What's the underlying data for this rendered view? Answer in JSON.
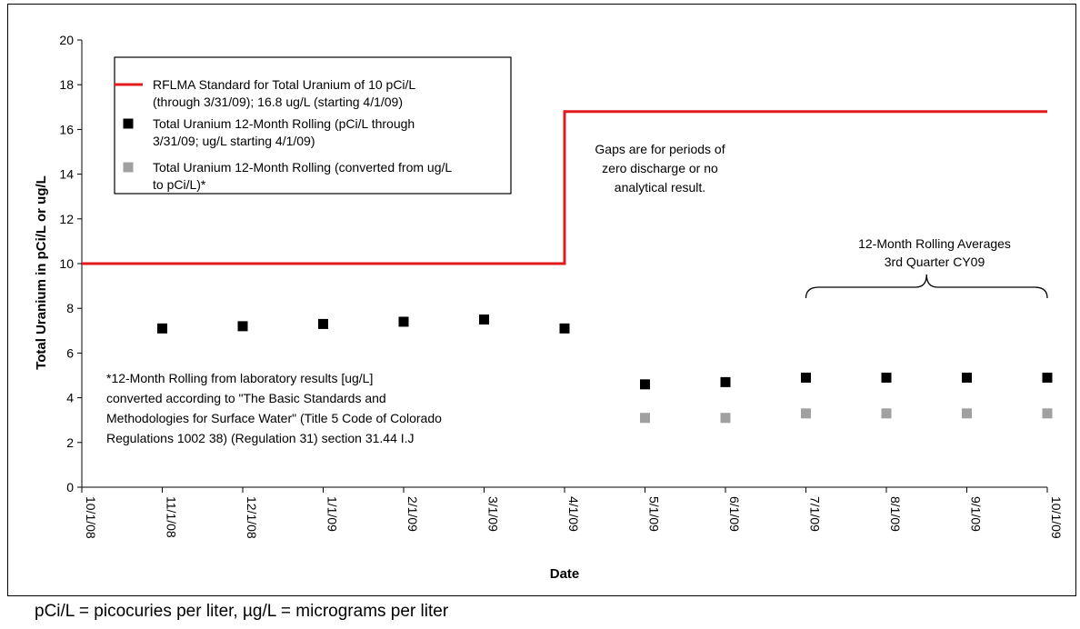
{
  "chart_data": {
    "type": "scatter",
    "title": "",
    "xlabel": "Date",
    "ylabel": "Total Uranium in pCi/L or ug/L",
    "ylim": [
      0,
      20
    ],
    "yticks": [
      0,
      2,
      4,
      6,
      8,
      10,
      12,
      14,
      16,
      18,
      20
    ],
    "x_categories": [
      "10/1/08",
      "11/1/08",
      "12/1/08",
      "1/1/09",
      "2/1/09",
      "3/1/09",
      "4/1/09",
      "5/1/09",
      "6/1/09",
      "7/1/09",
      "8/1/09",
      "9/1/09",
      "10/1/09"
    ],
    "grid": false,
    "legend_position": "top-left",
    "series": [
      {
        "name": "RFLMA Standard for Total Uranium of 10 pCi/L (through 3/31/09); 16.8 ug/L (starting 4/1/09)",
        "legend_lines": [
          "RFLMA Standard for Total Uranium of 10 pCi/L",
          "(through 3/31/09); 16.8 ug/L (starting 4/1/09)"
        ],
        "kind": "step-line",
        "color": "#e31a1c",
        "x": [
          "10/1/08",
          "4/1/09",
          "4/1/09",
          "10/1/09"
        ],
        "y": [
          10,
          10,
          16.8,
          16.8
        ]
      },
      {
        "name": "Total Uranium 12-Month Rolling (pCi/L through 3/31/09; ug/L starting 4/1/09)",
        "legend_lines": [
          "Total Uranium 12-Month Rolling (pCi/L through",
          "3/31/09; ug/L starting 4/1/09)"
        ],
        "kind": "square-marker",
        "color": "#000000",
        "x": [
          "11/1/08",
          "12/1/08",
          "1/1/09",
          "2/1/09",
          "3/1/09",
          "4/1/09",
          "5/1/09",
          "6/1/09",
          "7/1/09",
          "8/1/09",
          "9/1/09",
          "10/1/09"
        ],
        "y": [
          7.1,
          7.2,
          7.3,
          7.4,
          7.5,
          7.1,
          4.6,
          4.7,
          4.9,
          4.9,
          4.9,
          4.9
        ]
      },
      {
        "name": "Total Uranium 12-Month Rolling (converted from ug/L to pCi/L)*",
        "legend_lines": [
          "Total Uranium 12-Month Rolling (converted from ug/L",
          "to pCi/L)*"
        ],
        "kind": "square-marker",
        "color": "#a0a0a0",
        "x": [
          "5/1/09",
          "6/1/09",
          "7/1/09",
          "8/1/09",
          "9/1/09",
          "10/1/09"
        ],
        "y": [
          3.1,
          3.1,
          3.3,
          3.3,
          3.3,
          3.3
        ]
      }
    ],
    "annotations": {
      "gaps": [
        "Gaps are for periods of",
        "zero discharge or no",
        "analytical result."
      ],
      "rolling": [
        "12-Month Rolling Averages",
        "3rd Quarter CY09"
      ],
      "footnote": [
        "*12-Month Rolling from laboratory results [ug/L]",
        "converted according to \"The Basic Standards and",
        "Methodologies for Surface Water\" (Title 5 Code of Colorado",
        "Regulations 1002 38) (Regulation 31) section 31.44 I.J"
      ]
    }
  },
  "caption": "pCi/L = picocuries per liter, µg/L = micrograms per liter"
}
